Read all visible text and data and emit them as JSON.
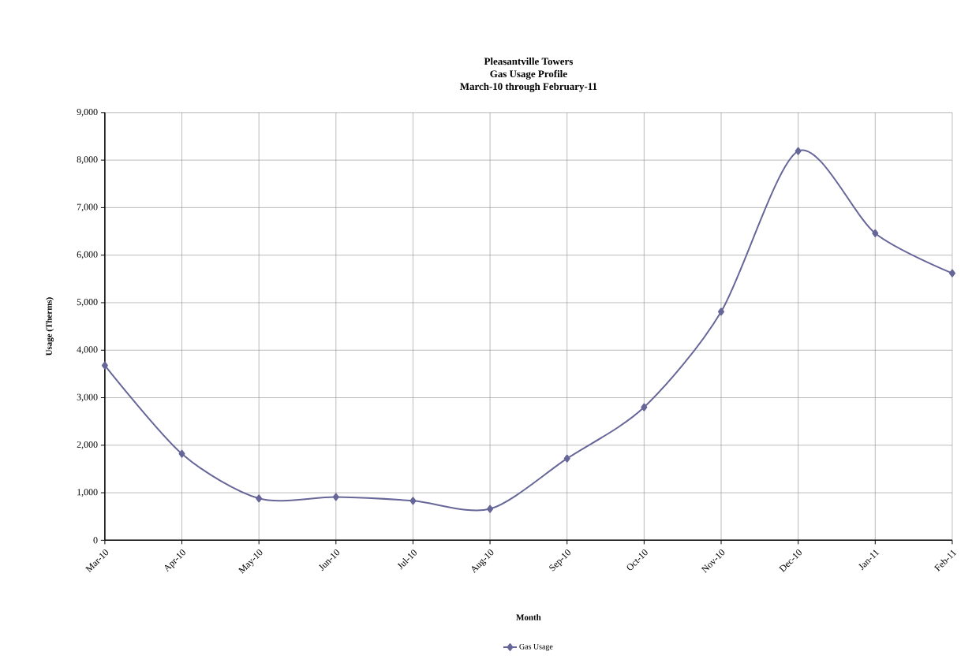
{
  "chart_data": {
    "type": "line",
    "title": "Pleasantville Towers\nGas Usage Profile\nMarch-10 through February-11",
    "xlabel": "Month",
    "ylabel": "Usage  (Therms)",
    "categories": [
      "Mar-10",
      "Apr-10",
      "May-10",
      "Jun-10",
      "Jul-10",
      "Aug-10",
      "Sep-10",
      "Oct-10",
      "Nov-10",
      "Dec-10",
      "Jan-11",
      "Feb-11"
    ],
    "series": [
      {
        "name": "Gas Usage",
        "color": "#666699",
        "values": [
          3680,
          1820,
          880,
          910,
          830,
          660,
          1720,
          2800,
          4810,
          8190,
          6460,
          5620
        ]
      }
    ],
    "ylim": [
      0,
      9000
    ],
    "yticks": [
      {
        "value": 0,
        "label": "0"
      },
      {
        "value": 1000,
        "label": "1,000"
      },
      {
        "value": 2000,
        "label": "2,000"
      },
      {
        "value": 3000,
        "label": "3,000"
      },
      {
        "value": 4000,
        "label": "4,000"
      },
      {
        "value": 5000,
        "label": "5,000"
      },
      {
        "value": 6000,
        "label": "6,000"
      },
      {
        "value": 7000,
        "label": "7,000"
      },
      {
        "value": 8000,
        "label": "8,000"
      },
      {
        "value": 9000,
        "label": "9,000"
      }
    ],
    "grid": true,
    "legend": "bottom",
    "marker": "diamond",
    "line_style": "solid"
  }
}
